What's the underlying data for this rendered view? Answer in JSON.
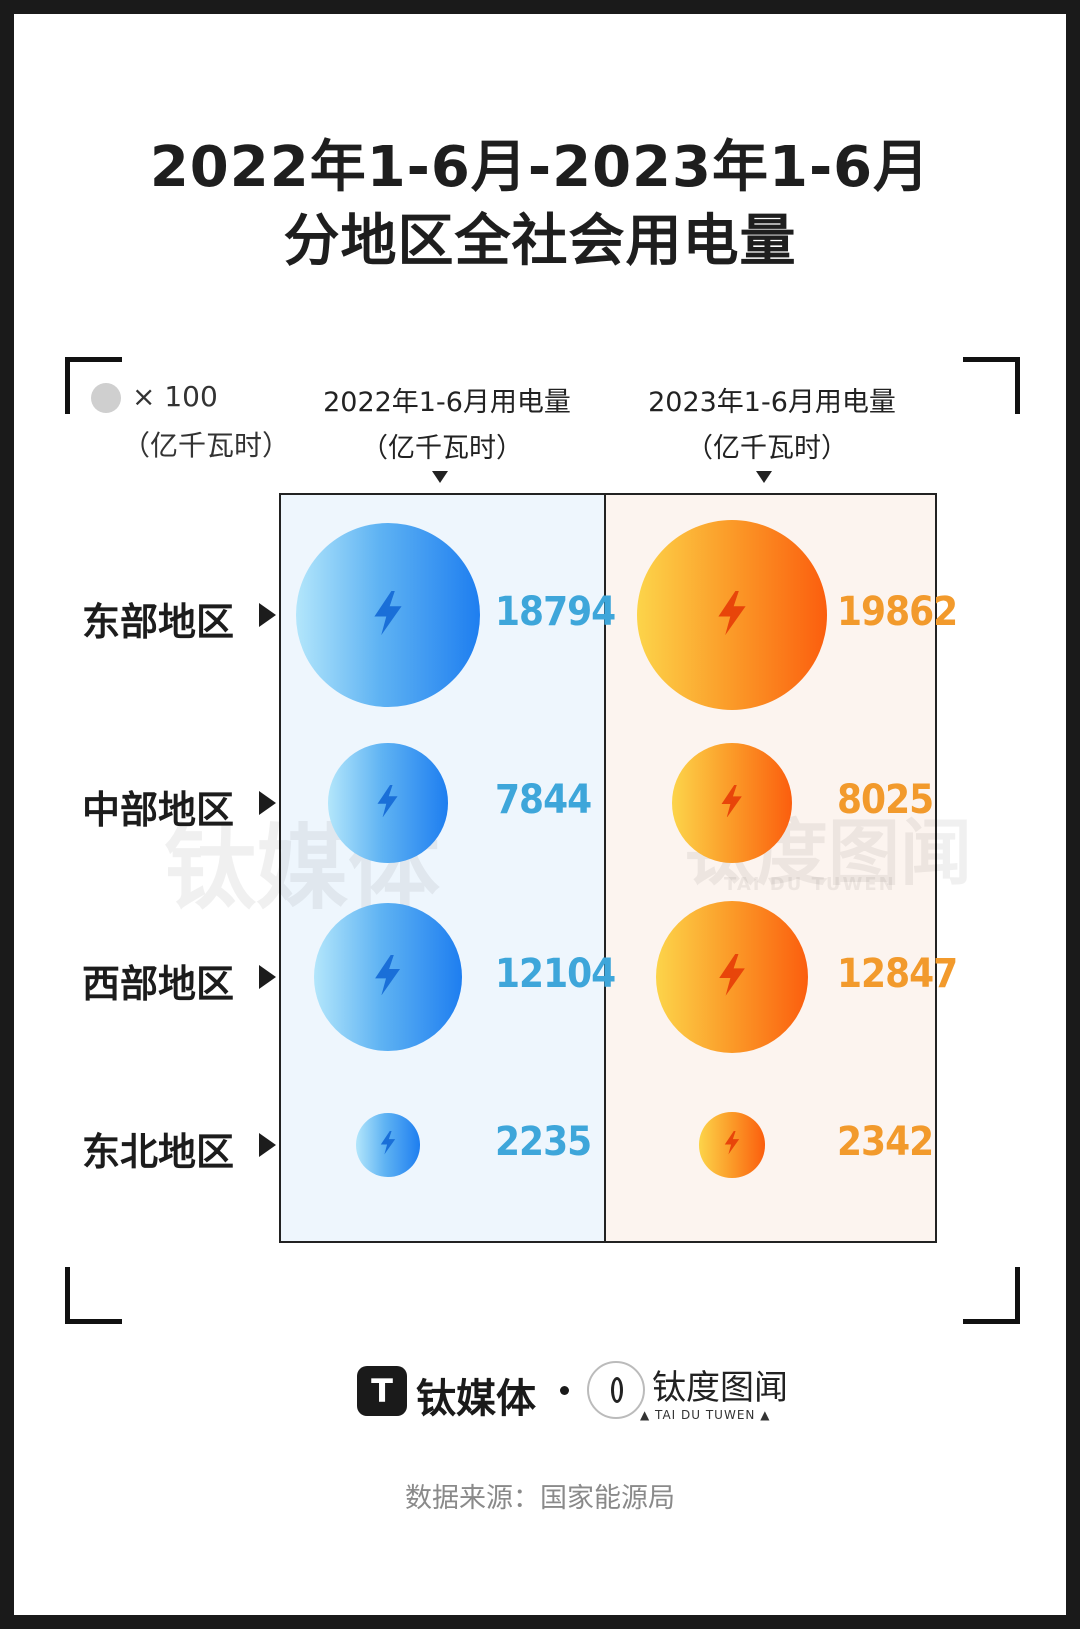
{
  "title_line1": "2022年1-6月-2023年1-6月",
  "title_line2": "分地区全社会用电量",
  "legend": {
    "marker": "× 100",
    "unit": "（亿千瓦时）",
    "dot_color": "#cfcfcf"
  },
  "columns": [
    {
      "header": "2022年1-6月用电量",
      "unit": "（亿千瓦时）"
    },
    {
      "header": "2023年1-6月用电量",
      "unit": "（亿千瓦时）"
    }
  ],
  "chart_data": {
    "type": "bubble",
    "categories": [
      "东部地区",
      "中部地区",
      "西部地区",
      "东北地区"
    ],
    "series": [
      {
        "name": "2022年1-6月用电量",
        "values": [
          18794,
          7844,
          12104,
          2235
        ],
        "color": "#2a8cf0"
      },
      {
        "name": "2023年1-6月用电量",
        "values": [
          19862,
          8025,
          12847,
          2342
        ],
        "color": "#fb7a18"
      }
    ],
    "unit": "亿千瓦时"
  },
  "value_labels": {
    "s2022": [
      "18794",
      "7844",
      "12104",
      "2235"
    ],
    "s2023": [
      "19862",
      "8025",
      "12847",
      "2342"
    ]
  },
  "icon": "lightning-bolt-icon",
  "watermark": {
    "left": "钛媒体",
    "right": "钛度图闻",
    "right_sub": "TAI DU TUWEN"
  },
  "footer": {
    "brand1": "钛媒体",
    "brand1_mark": "T",
    "brand2": "钛度图闻",
    "brand2_sub": "▲ TAI DU TUWEN ▲",
    "source": "数据来源：国家能源局"
  }
}
